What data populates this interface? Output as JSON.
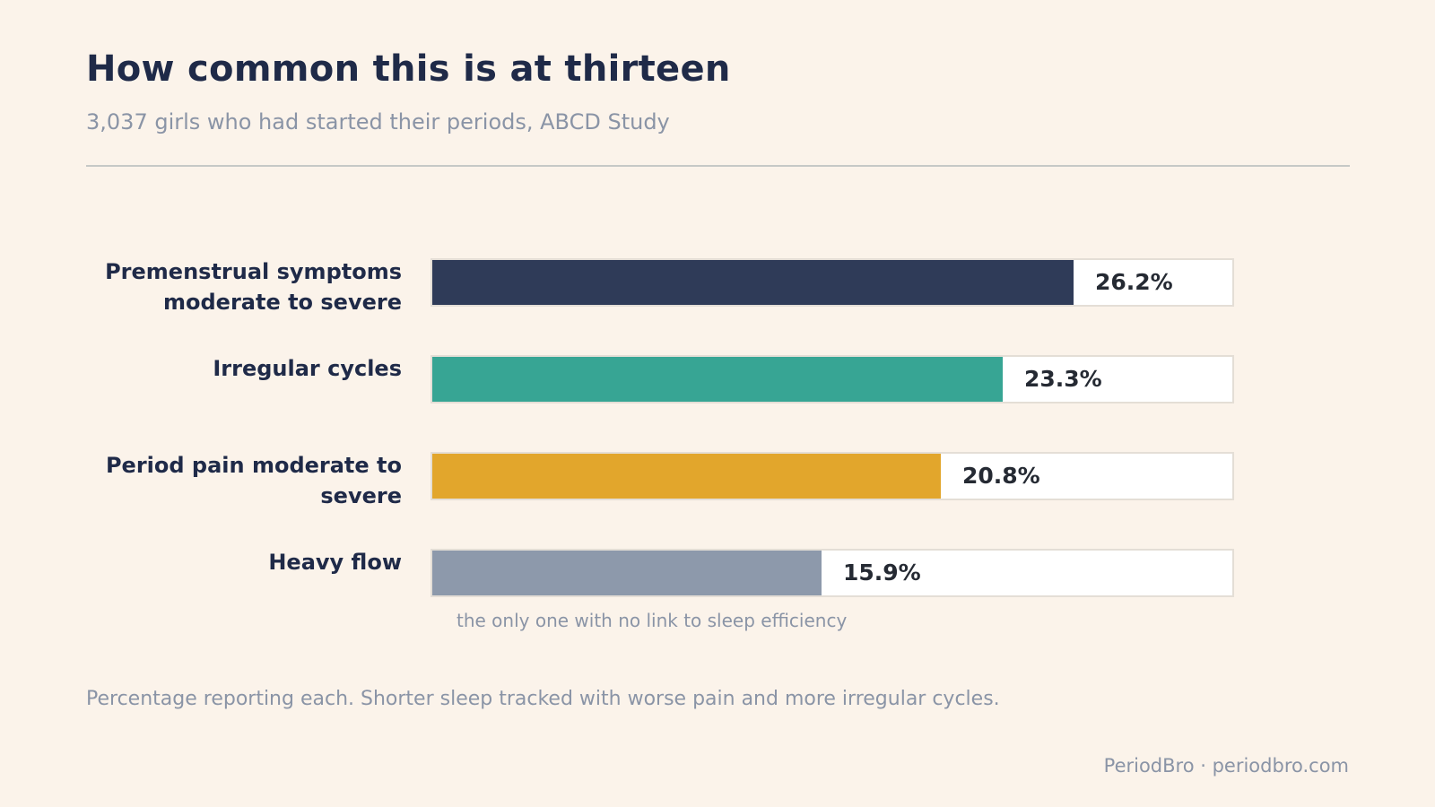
{
  "title": "How common this is at thirteen",
  "subtitle": "3,037 girls who had started their periods, ABCD Study",
  "footnote": "Percentage reporting each. Shorter sleep tracked with worse pain and more irregular cycles.",
  "brand": "PeriodBro · periodbro.com",
  "chart_data": {
    "type": "bar",
    "orientation": "horizontal",
    "title": "How common this is at thirteen",
    "categories": [
      [
        "Premenstrual symptoms",
        "moderate to severe"
      ],
      [
        "Irregular cycles"
      ],
      [
        "Period pain moderate to",
        "severe"
      ],
      [
        "Heavy flow"
      ]
    ],
    "values": [
      26.2,
      23.3,
      20.8,
      15.9
    ],
    "value_labels": [
      "26.2%",
      "23.3%",
      "20.8%",
      "15.9%"
    ],
    "colors": [
      "#2f3b58",
      "#37a594",
      "#e2a62c",
      "#8d99ab"
    ],
    "xlim": [
      0,
      32.7
    ],
    "annotations": [
      "",
      "",
      "",
      "the only one with no link to sleep efficiency"
    ],
    "grid": false,
    "legend": "none"
  }
}
